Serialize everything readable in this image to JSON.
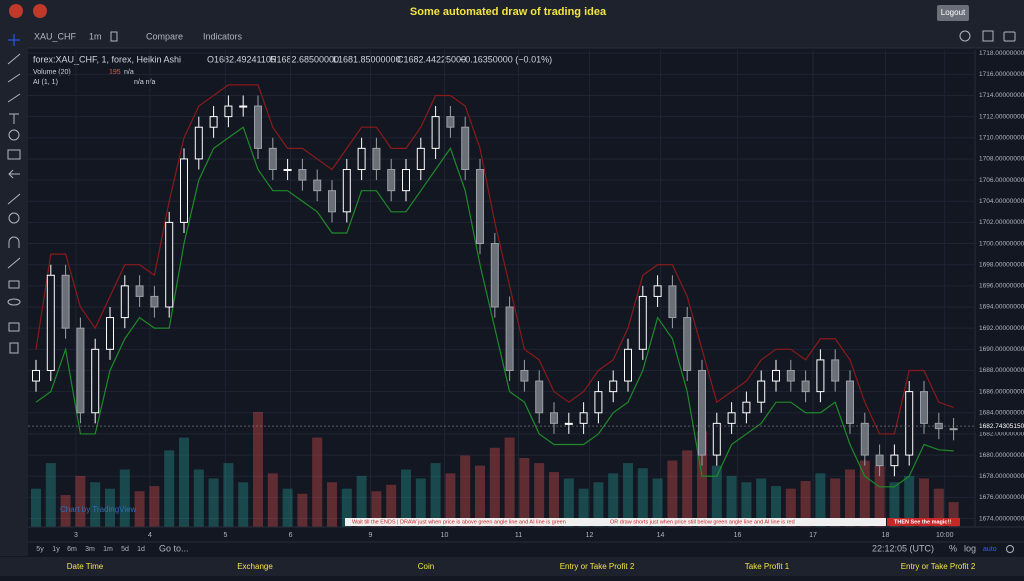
{
  "header": {
    "title": "Some automated draw of trading idea",
    "logout": "Logout"
  },
  "toolbar": {
    "symbol": "XAU_CHF",
    "interval": "1m",
    "compare": "Compare",
    "indicators": "Indicators"
  },
  "legend": {
    "symbol": "forex:XAU_CHF, 1, forex, Heikin Ashi",
    "open": "O1682.49241105",
    "high": "H1682.68500000",
    "low": "L1681.85000000",
    "close": "C1682.44225000",
    "change": "−0.16350000 (−0.01%)",
    "volume": "Volume (20)",
    "volume_na": "n/a",
    "ai": "AI (1, 1)",
    "ai_na": "n/a  n/a"
  },
  "chart_data": {
    "type": "candlestick",
    "open": [
      1687,
      1688,
      1697,
      1692,
      1684,
      1690,
      1693,
      1696,
      1695,
      1694,
      1702,
      1708,
      1711,
      1712,
      1713,
      1713,
      1709,
      1707,
      1707,
      1706,
      1705,
      1703,
      1707,
      1709,
      1707,
      1705,
      1707,
      1709,
      1712,
      1711,
      1707,
      1700,
      1694,
      1688,
      1687,
      1684,
      1683,
      1683,
      1684,
      1686,
      1687,
      1690,
      1695,
      1696,
      1693,
      1688,
      1680,
      1683,
      1684,
      1685,
      1687,
      1688,
      1687,
      1686,
      1689,
      1687,
      1683,
      1680,
      1679,
      1680,
      1686,
      1683,
      1682.5
    ],
    "high": [
      1689,
      1698,
      1698,
      1693,
      1691,
      1694,
      1697,
      1697,
      1696,
      1703,
      1709,
      1712,
      1713,
      1714,
      1714,
      1714,
      1710,
      1708,
      1708,
      1707,
      1706,
      1708,
      1710,
      1710,
      1708,
      1708,
      1710,
      1713,
      1713,
      1712,
      1708,
      1701,
      1695,
      1689,
      1688,
      1685,
      1684,
      1685,
      1687,
      1688,
      1691,
      1696,
      1697,
      1697,
      1694,
      1689,
      1684,
      1685,
      1686,
      1688,
      1689,
      1689,
      1688,
      1690,
      1690,
      1688,
      1684,
      1681,
      1681,
      1687,
      1687,
      1684,
      1683.5
    ],
    "low": [
      1686,
      1687,
      1691,
      1683,
      1683,
      1689,
      1692,
      1694,
      1693,
      1693,
      1701,
      1707,
      1710,
      1711,
      1712,
      1708,
      1706,
      1706,
      1705,
      1704,
      1702,
      1702,
      1706,
      1706,
      1704,
      1704,
      1706,
      1708,
      1710,
      1706,
      1699,
      1693,
      1687,
      1686,
      1683,
      1682,
      1682,
      1682,
      1683,
      1685,
      1686,
      1689,
      1694,
      1692,
      1687,
      1679,
      1679,
      1682,
      1683,
      1684,
      1686,
      1686,
      1685,
      1685,
      1686,
      1682,
      1679,
      1678,
      1678,
      1679,
      1682,
      1681.5,
      1681.4
    ],
    "close": [
      1688,
      1697,
      1692,
      1684,
      1690,
      1693,
      1696,
      1695,
      1694,
      1702,
      1708,
      1711,
      1712,
      1713,
      1713,
      1709,
      1707,
      1707,
      1706,
      1705,
      1703,
      1707,
      1709,
      1707,
      1705,
      1707,
      1709,
      1712,
      1711,
      1707,
      1700,
      1694,
      1688,
      1687,
      1684,
      1683,
      1683,
      1684,
      1686,
      1687,
      1690,
      1695,
      1696,
      1693,
      1688,
      1680,
      1683,
      1684,
      1685,
      1687,
      1688,
      1687,
      1686,
      1689,
      1687,
      1683,
      1680,
      1679,
      1680,
      1686,
      1683,
      1682.5,
      1682.4
    ],
    "upper_line": {
      "color": "#8b1a1a",
      "values": [
        1690,
        1699,
        1699,
        1694,
        1692,
        1695,
        1698,
        1698,
        1697,
        1704,
        1710,
        1713,
        1714,
        1715,
        1715,
        1715,
        1711,
        1709,
        1709,
        1708,
        1707,
        1709,
        1711,
        1711,
        1709,
        1709,
        1711,
        1714,
        1714,
        1713,
        1709,
        1702,
        1696,
        1690,
        1689,
        1686,
        1685,
        1686,
        1688,
        1689,
        1692,
        1697,
        1698,
        1698,
        1695,
        1690,
        1685,
        1686,
        1687,
        1689,
        1690,
        1690,
        1689,
        1691,
        1691,
        1689,
        1685,
        1682,
        1682,
        1688,
        1688,
        1685,
        1684.5
      ]
    },
    "lower_line": {
      "color": "#1e8a2a",
      "values": [
        1685,
        1686,
        1690,
        1682,
        1682,
        1688,
        1691,
        1693,
        1692,
        1692,
        1700,
        1706,
        1709,
        1710,
        1711,
        1707,
        1705,
        1705,
        1704,
        1703,
        1701,
        1701,
        1705,
        1705,
        1703,
        1703,
        1705,
        1707,
        1709,
        1705,
        1698,
        1692,
        1686,
        1685,
        1682,
        1681,
        1681,
        1681,
        1682,
        1684,
        1685,
        1688,
        1693,
        1691,
        1686,
        1678,
        1678,
        1681,
        1682,
        1683,
        1685,
        1685,
        1684,
        1684,
        1685,
        1681,
        1678,
        1677,
        1677,
        1678,
        1681,
        1680.5,
        1680.4
      ]
    },
    "volume": [
      300,
      500,
      250,
      400,
      350,
      300,
      450,
      280,
      320,
      600,
      700,
      450,
      380,
      500,
      350,
      900,
      420,
      300,
      260,
      700,
      350,
      300,
      400,
      280,
      330,
      450,
      380,
      500,
      420,
      560,
      480,
      620,
      700,
      540,
      500,
      430,
      380,
      300,
      350,
      420,
      500,
      460,
      380,
      520,
      600,
      750,
      480,
      400,
      350,
      380,
      320,
      300,
      360,
      420,
      380,
      450,
      520,
      480,
      350,
      400,
      380,
      300,
      195
    ],
    "ylim": [
      1673.2,
      1718.3
    ],
    "yticks": [
      {
        "value": 1674,
        "label": "1674.00000000"
      },
      {
        "value": 1676,
        "label": "1676.00000000"
      },
      {
        "value": 1678,
        "label": "1678.00000000"
      },
      {
        "value": 1680,
        "label": "1680.00000000"
      },
      {
        "value": 1682,
        "label": "1682.00000000"
      },
      {
        "value": 1684,
        "label": "1684.00000000"
      },
      {
        "value": 1686,
        "label": "1686.00000000"
      },
      {
        "value": 1688,
        "label": "1688.00000000"
      },
      {
        "value": 1690,
        "label": "1690.00000000"
      },
      {
        "value": 1692,
        "label": "1692.00000000"
      },
      {
        "value": 1694,
        "label": "1694.00000000"
      },
      {
        "value": 1696,
        "label": "1696.00000000"
      },
      {
        "value": 1698,
        "label": "1698.00000000"
      },
      {
        "value": 1700,
        "label": "1700.00000000"
      },
      {
        "value": 1702,
        "label": "1702.00000000"
      },
      {
        "value": 1704,
        "label": "1704.00000000"
      },
      {
        "value": 1706,
        "label": "1706.00000000"
      },
      {
        "value": 1708,
        "label": "1708.00000000"
      },
      {
        "value": 1710,
        "label": "1710.00000000"
      },
      {
        "value": 1712,
        "label": "1712.00000000"
      },
      {
        "value": 1714,
        "label": "1714.00000000"
      },
      {
        "value": 1716,
        "label": "1716.00000000"
      },
      {
        "value": 1718,
        "label": "1718.00000000"
      }
    ],
    "xticks": [
      {
        "value": 2.7,
        "label": "3"
      },
      {
        "value": 7.7,
        "label": "4"
      },
      {
        "value": 12.8,
        "label": "5"
      },
      {
        "value": 17.2,
        "label": "6"
      },
      {
        "value": 22.6,
        "label": "9"
      },
      {
        "value": 27.6,
        "label": "10"
      },
      {
        "value": 32.6,
        "label": "11"
      },
      {
        "value": 37.4,
        "label": "12"
      },
      {
        "value": 42.2,
        "label": "14"
      },
      {
        "value": 47.4,
        "label": "16"
      },
      {
        "value": 52.5,
        "label": "17"
      },
      {
        "value": 57.4,
        "label": "18"
      },
      {
        "value": 61.4,
        "label": "10:00"
      }
    ],
    "last_price": {
      "value": 1682.7430515,
      "label": "1682.74305150"
    },
    "grid": true
  },
  "signals": [
    "Wait till the ENDS | DRAW just when price is above green angle line and AI line is green",
    "OR draw shorts just when price still below green angle line and AI line is red",
    "THEN See the magic!!"
  ],
  "watermark": "Chart by TradingView",
  "bottom_bar": {
    "ranges": [
      "5y",
      "1y",
      "6m",
      "3m",
      "1m",
      "5d",
      "1d"
    ],
    "goto": "Go to...",
    "time": "22:12:05 (UTC)",
    "percent": "%",
    "log": "log",
    "auto": "auto"
  },
  "footer": [
    "Date Time",
    "Exchange",
    "Coin",
    "Entry or Take Profit 2",
    "Take Profit 1",
    "Entry or Take Profit 2"
  ]
}
